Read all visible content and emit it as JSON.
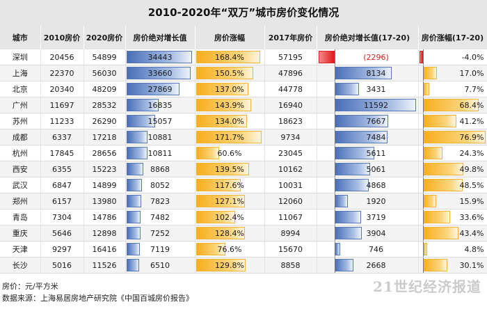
{
  "title": "2010-2020年“双万”城市房价变化情况",
  "headers": [
    "城市",
    "2010房价",
    "2020房价",
    "房价绝对增长值",
    "房价涨幅",
    "2017年房价",
    "房价绝对增长值(17-20)",
    "房价涨幅(17-20)"
  ],
  "footnote_unit": "房价：元/平方米",
  "footnote_source": "数据来源：上海易居房地产研究院《中国百城房价报告》",
  "watermark": "21世纪经济报道",
  "colors": {
    "blue": "#4a6fb8",
    "orange": "#f7ae1c",
    "negative": "#e21b1b",
    "header_bg": "#e6e6e6"
  },
  "chart_data": {
    "type": "table",
    "title": "2010-2020年“双万”城市房价变化情况",
    "columns": [
      "城市",
      "2010房价",
      "2020房价",
      "房价绝对增长值",
      "房价涨幅",
      "2017年房价",
      "房价绝对增长值(17-20)",
      "房价涨幅(17-20)"
    ],
    "rows": [
      {
        "city": "深圳",
        "p2010": "20456",
        "p2020": "54899",
        "inc": "34443",
        "pct": "168.4%",
        "p2017": "57195",
        "inc17": "(2296)",
        "pct17": "-4.0%",
        "inc_v": 34443,
        "pct_v": 168.4,
        "inc17_v": -2296,
        "pct17_v": -4.0
      },
      {
        "city": "上海",
        "p2010": "22370",
        "p2020": "56030",
        "inc": "33660",
        "pct": "150.5%",
        "p2017": "47896",
        "inc17": "8134",
        "pct17": "17.0%",
        "inc_v": 33660,
        "pct_v": 150.5,
        "inc17_v": 8134,
        "pct17_v": 17.0
      },
      {
        "city": "北京",
        "p2010": "20340",
        "p2020": "48209",
        "inc": "27869",
        "pct": "137.0%",
        "p2017": "44778",
        "inc17": "3431",
        "pct17": "7.7%",
        "inc_v": 27869,
        "pct_v": 137.0,
        "inc17_v": 3431,
        "pct17_v": 7.7
      },
      {
        "city": "广州",
        "p2010": "11697",
        "p2020": "28532",
        "inc": "16835",
        "pct": "143.9%",
        "p2017": "16940",
        "inc17": "11592",
        "pct17": "68.4%",
        "inc_v": 16835,
        "pct_v": 143.9,
        "inc17_v": 11592,
        "pct17_v": 68.4
      },
      {
        "city": "苏州",
        "p2010": "11233",
        "p2020": "26290",
        "inc": "15057",
        "pct": "134.0%",
        "p2017": "18623",
        "inc17": "7667",
        "pct17": "41.2%",
        "inc_v": 15057,
        "pct_v": 134.0,
        "inc17_v": 7667,
        "pct17_v": 41.2
      },
      {
        "city": "成都",
        "p2010": "6337",
        "p2020": "17218",
        "inc": "10881",
        "pct": "171.7%",
        "p2017": "9734",
        "inc17": "7484",
        "pct17": "76.9%",
        "inc_v": 10881,
        "pct_v": 171.7,
        "inc17_v": 7484,
        "pct17_v": 76.9
      },
      {
        "city": "杭州",
        "p2010": "17845",
        "p2020": "28656",
        "inc": "10811",
        "pct": "60.6%",
        "p2017": "23045",
        "inc17": "5611",
        "pct17": "24.3%",
        "inc_v": 10811,
        "pct_v": 60.6,
        "inc17_v": 5611,
        "pct17_v": 24.3
      },
      {
        "city": "西安",
        "p2010": "6355",
        "p2020": "15223",
        "inc": "8868",
        "pct": "139.5%",
        "p2017": "10162",
        "inc17": "5061",
        "pct17": "49.8%",
        "inc_v": 8868,
        "pct_v": 139.5,
        "inc17_v": 5061,
        "pct17_v": 49.8
      },
      {
        "city": "武汉",
        "p2010": "6847",
        "p2020": "14899",
        "inc": "8052",
        "pct": "117.6%",
        "p2017": "10031",
        "inc17": "4868",
        "pct17": "48.5%",
        "inc_v": 8052,
        "pct_v": 117.6,
        "inc17_v": 4868,
        "pct17_v": 48.5
      },
      {
        "city": "郑州",
        "p2010": "6157",
        "p2020": "13980",
        "inc": "7823",
        "pct": "127.1%",
        "p2017": "12060",
        "inc17": "1920",
        "pct17": "15.9%",
        "inc_v": 7823,
        "pct_v": 127.1,
        "inc17_v": 1920,
        "pct17_v": 15.9
      },
      {
        "city": "青岛",
        "p2010": "7304",
        "p2020": "14786",
        "inc": "7482",
        "pct": "102.4%",
        "p2017": "11067",
        "inc17": "3719",
        "pct17": "33.6%",
        "inc_v": 7482,
        "pct_v": 102.4,
        "inc17_v": 3719,
        "pct17_v": 33.6
      },
      {
        "city": "重庆",
        "p2010": "5646",
        "p2020": "12898",
        "inc": "7252",
        "pct": "128.4%",
        "p2017": "8994",
        "inc17": "3904",
        "pct17": "43.4%",
        "inc_v": 7252,
        "pct_v": 128.4,
        "inc17_v": 3904,
        "pct17_v": 43.4
      },
      {
        "city": "天津",
        "p2010": "9297",
        "p2020": "16416",
        "inc": "7119",
        "pct": "76.6%",
        "p2017": "15670",
        "inc17": "746",
        "pct17": "4.8%",
        "inc_v": 7119,
        "pct_v": 76.6,
        "inc17_v": 746,
        "pct17_v": 4.8
      },
      {
        "city": "长沙",
        "p2010": "5016",
        "p2020": "11526",
        "inc": "6510",
        "pct": "129.8%",
        "p2017": "8858",
        "inc17": "2668",
        "pct17": "30.1%",
        "inc_v": 6510,
        "pct_v": 129.8,
        "inc17_v": 2668,
        "pct17_v": 30.1
      }
    ]
  }
}
